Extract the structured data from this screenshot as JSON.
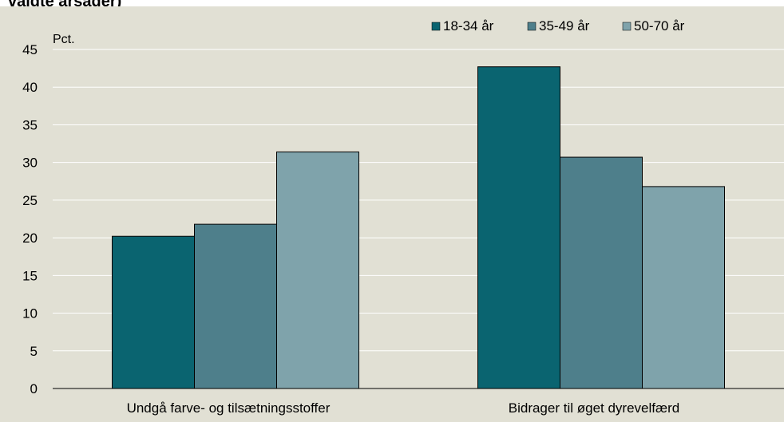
{
  "heading": "valgte årsager)",
  "chart_data": {
    "type": "bar",
    "ylabel": "Pct.",
    "ylim": [
      0,
      45
    ],
    "yticks": [
      0,
      5,
      10,
      15,
      20,
      25,
      30,
      35,
      40,
      45
    ],
    "grid": true,
    "legend_position": "top-right",
    "categories": [
      "Undgå farve- og tilsætningsstoffer",
      "Bidrager til øget dyrevelfærd"
    ],
    "series": [
      {
        "name": "18-34 år",
        "color": "#0a6470",
        "values": [
          20.2,
          42.7
        ]
      },
      {
        "name": "35-49 år",
        "color": "#4e7f8b",
        "values": [
          21.8,
          30.7
        ]
      },
      {
        "name": "50-70 år",
        "color": "#7fa3ab",
        "values": [
          31.4,
          26.8
        ]
      }
    ]
  }
}
